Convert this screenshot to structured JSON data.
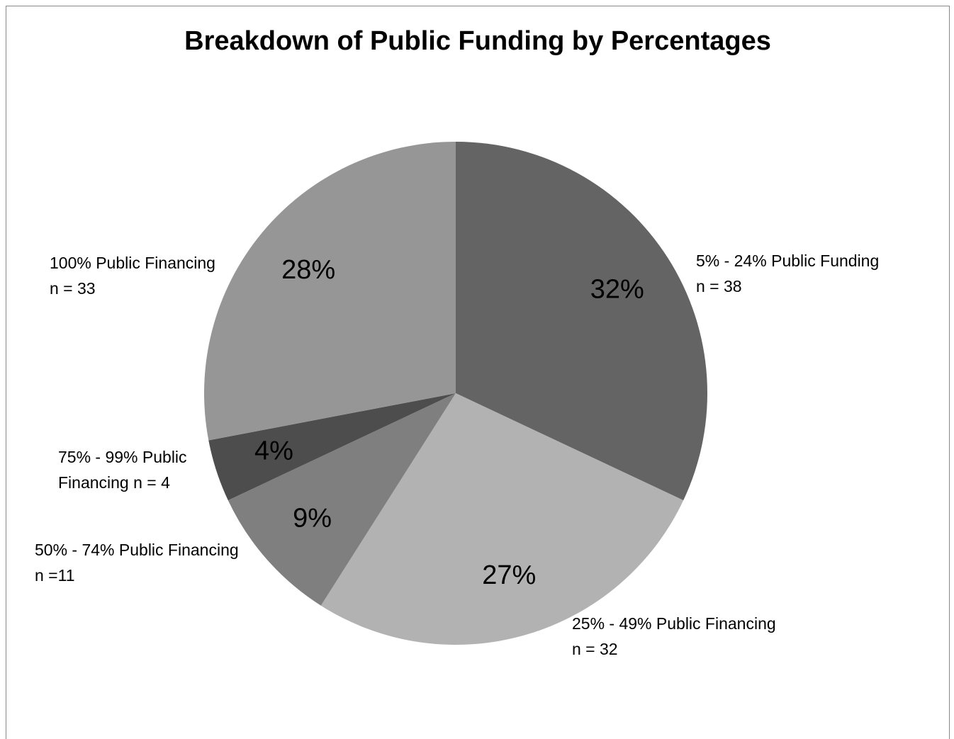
{
  "chart_data": {
    "type": "pie",
    "title": "Breakdown of Public Funding by Percentages",
    "categories": [
      [
        "5% - 24% Public Funding",
        "n = 38"
      ],
      [
        "25% - 49% Public Financing",
        "n = 32"
      ],
      [
        "50% - 74% Public Financing",
        "n =11"
      ],
      [
        "75% - 99% Public",
        "Financing n = 4"
      ],
      [
        "100% Public Financing",
        "n = 33"
      ]
    ],
    "values": [
      32,
      27,
      9,
      4,
      28
    ],
    "value_labels": [
      "32%",
      "27%",
      "9%",
      "4%",
      "28%"
    ],
    "colors": [
      "#646464",
      "#b2b2b2",
      "#7f7f7f",
      "#4d4d4d",
      "#969696"
    ]
  }
}
